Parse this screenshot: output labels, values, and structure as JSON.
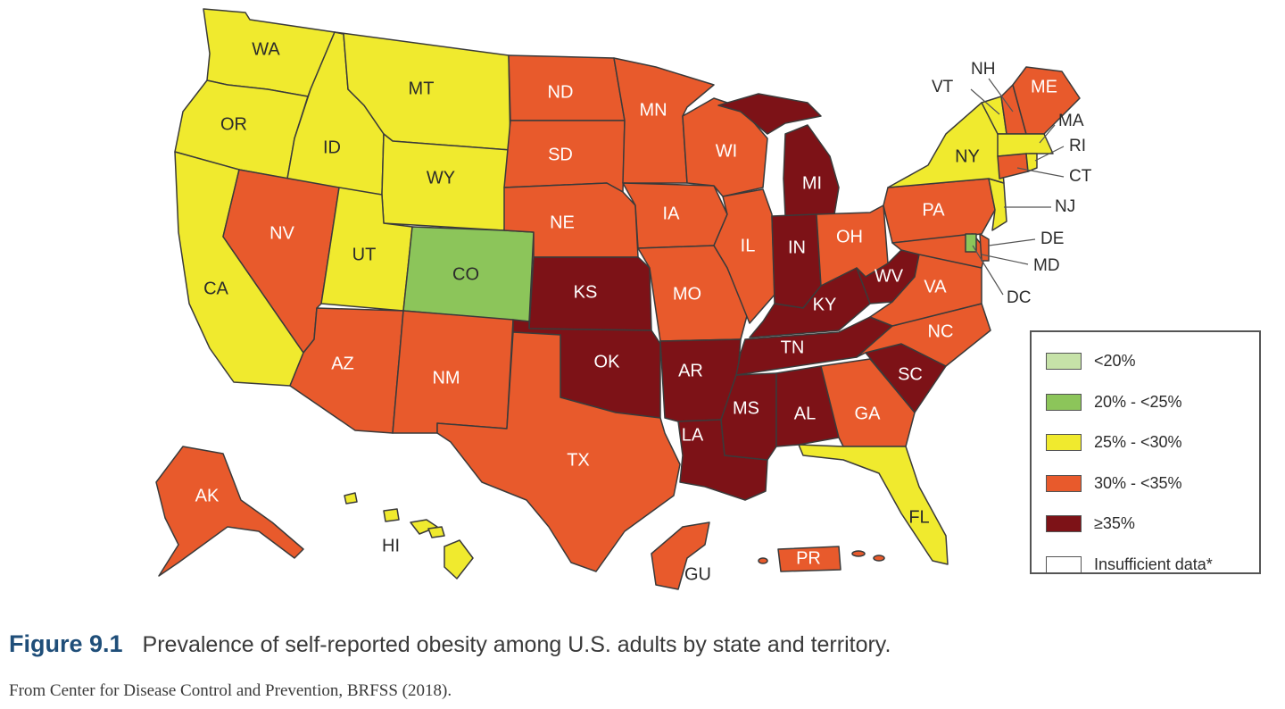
{
  "figure": {
    "number": "Figure 9.1",
    "caption": "Prevalence of self-reported obesity among U.S. adults by state and territory.",
    "source": "From Center for Disease Control and Prevention, BRFSS (2018)."
  },
  "legend": {
    "items": [
      {
        "label": "<20%",
        "color": "#c6e2a8"
      },
      {
        "label": "20% - <25%",
        "color": "#8cc55a"
      },
      {
        "label": "25% - <30%",
        "color": "#f0ea2e"
      },
      {
        "label": "30% - <35%",
        "color": "#e85a2c"
      },
      {
        "label": "≥35%",
        "color": "#7d1217"
      },
      {
        "label": "Insufficient data*",
        "color": "#ffffff"
      }
    ]
  },
  "colors": {
    "c2": "#8cc55a",
    "c3": "#f0ea2e",
    "c4": "#e85a2c",
    "c5": "#7d1217",
    "stroke": "#3a3a3a"
  },
  "states": {
    "WA": "WA",
    "OR": "OR",
    "CA": "CA",
    "ID": "ID",
    "NV": "NV",
    "MT": "MT",
    "WY": "WY",
    "UT": "UT",
    "CO": "CO",
    "AZ": "AZ",
    "NM": "NM",
    "ND": "ND",
    "SD": "SD",
    "NE": "NE",
    "KS": "KS",
    "OK": "OK",
    "TX": "TX",
    "MN": "MN",
    "IA": "IA",
    "MO": "MO",
    "AR": "AR",
    "LA": "LA",
    "WI": "WI",
    "IL": "IL",
    "MS": "MS",
    "MI": "MI",
    "IN": "IN",
    "KY": "KY",
    "TN": "TN",
    "AL": "AL",
    "OH": "OH",
    "WV": "WV",
    "GA": "GA",
    "FL": "FL",
    "SC": "SC",
    "NC": "NC",
    "VA": "VA",
    "PA": "PA",
    "NY": "NY",
    "ME": "ME",
    "AK": "AK",
    "HI": "HI",
    "GU": "GU",
    "PR": "PR"
  },
  "callouts": {
    "VT": "VT",
    "NH": "NH",
    "MA": "MA",
    "RI": "RI",
    "CT": "CT",
    "NJ": "NJ",
    "DE": "DE",
    "MD": "MD",
    "DC": "DC"
  }
}
